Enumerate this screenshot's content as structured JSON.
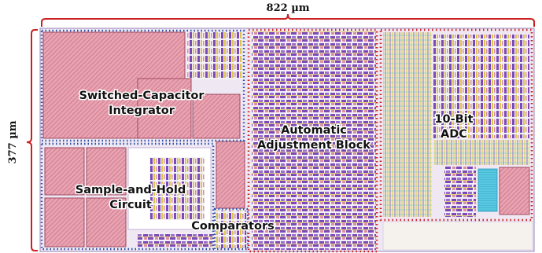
{
  "dimensions": {
    "width_label": "822 µm",
    "height_label": "377 µm"
  },
  "blocks": {
    "integrator": {
      "label_line1": "Switched-Capacitor",
      "label_line2": "Integrator",
      "outline_color": "#2b4fa8"
    },
    "sample_hold": {
      "label_line1": "Sample-and-Hold",
      "label_line2": "Circuit",
      "outline_color": "#2b4fa8"
    },
    "comparators": {
      "label": "Comparators",
      "outline_color": "#2b4fa8"
    },
    "adjustment": {
      "label_line1": "Automatic",
      "label_line2": "Adjustment Block",
      "outline_color": "#cc1f1f"
    },
    "adc": {
      "label_line1": "10-Bit",
      "label_line2": "ADC",
      "outline_color": "#cc1f1f"
    }
  },
  "colors": {
    "dimension_bracket": "#cc1f1f",
    "capacitor_fill": "#d98fa0",
    "metal_purple": "#7a4ab8",
    "metal_yellow": "#d8c64a",
    "metal_cyan": "#56c8e0"
  }
}
